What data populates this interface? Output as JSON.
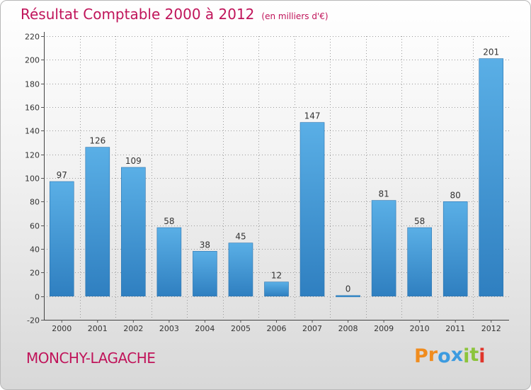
{
  "header": {
    "title": "Résultat Comptable 2000 à 2012",
    "unit": "(en milliers d'€)"
  },
  "footer": {
    "city": "MONCHY-LAGACHE",
    "brand": "Proxiti",
    "brand_letters": [
      "P",
      "r",
      "o",
      "x",
      "i",
      "t",
      "i"
    ]
  },
  "colors": {
    "title": "#c0145a",
    "bar_top": "#5aafe6",
    "bar_bottom": "#2f7fc0",
    "grid": "#9a9a9a",
    "brand_letters": [
      "#f08c1e",
      "#f08c1e",
      "#3c9be0",
      "#3c9be0",
      "#8cc43c",
      "#8cc43c",
      "#e0352b"
    ]
  },
  "chart_data": {
    "type": "bar",
    "title": "Résultat Comptable 2000 à 2012",
    "subtitle": "(en milliers d'€)",
    "categories": [
      "2000",
      "2001",
      "2002",
      "2003",
      "2004",
      "2005",
      "2006",
      "2007",
      "2008",
      "2009",
      "2010",
      "2011",
      "2012"
    ],
    "values": [
      97,
      126,
      109,
      58,
      38,
      45,
      12,
      147,
      0,
      81,
      58,
      80,
      201
    ],
    "yticks": [
      -20,
      0,
      20,
      40,
      60,
      80,
      100,
      120,
      140,
      160,
      180,
      200,
      220
    ],
    "ylim": [
      -20,
      220
    ],
    "xlabel": "",
    "ylabel": "",
    "grid": true,
    "legend": "none"
  }
}
